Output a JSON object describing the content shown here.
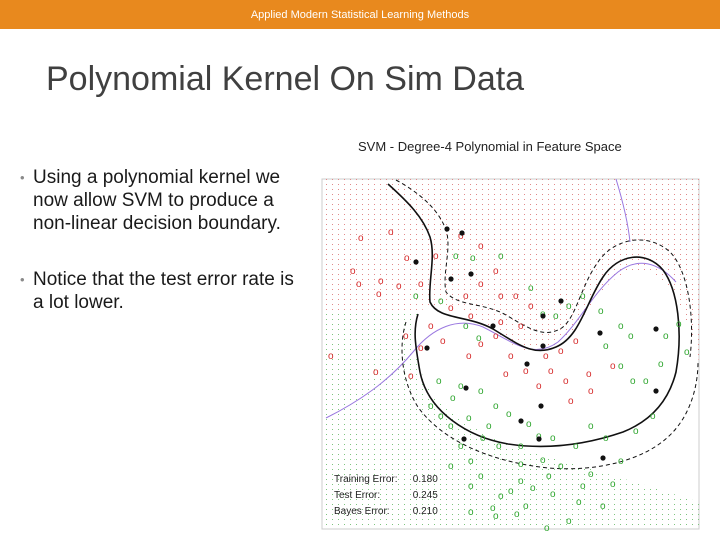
{
  "header": {
    "course": "Applied Modern Statistical Learning Methods"
  },
  "slide": {
    "title": "Polynomial Kernel On Sim Data",
    "bullets": [
      "Using a polynomial kernel we now allow SVM to produce a non-linear decision boundary.",
      "Notice that the test error rate is a lot lower."
    ]
  },
  "figure": {
    "title": "SVM - Degree-4 Polynomial in Feature Space",
    "point_glyph": "o",
    "class_colors": {
      "red": "#d62c2c",
      "green": "#2fa62f",
      "support_vector": "#111111",
      "bayes": "#8a5cd6"
    },
    "errors": [
      {
        "label": "Training Error:",
        "value": "0.180"
      },
      {
        "label": "Test Error:",
        "value": "0.245"
      },
      {
        "label": "Bayes Error:",
        "value": "0.210"
      }
    ]
  }
}
